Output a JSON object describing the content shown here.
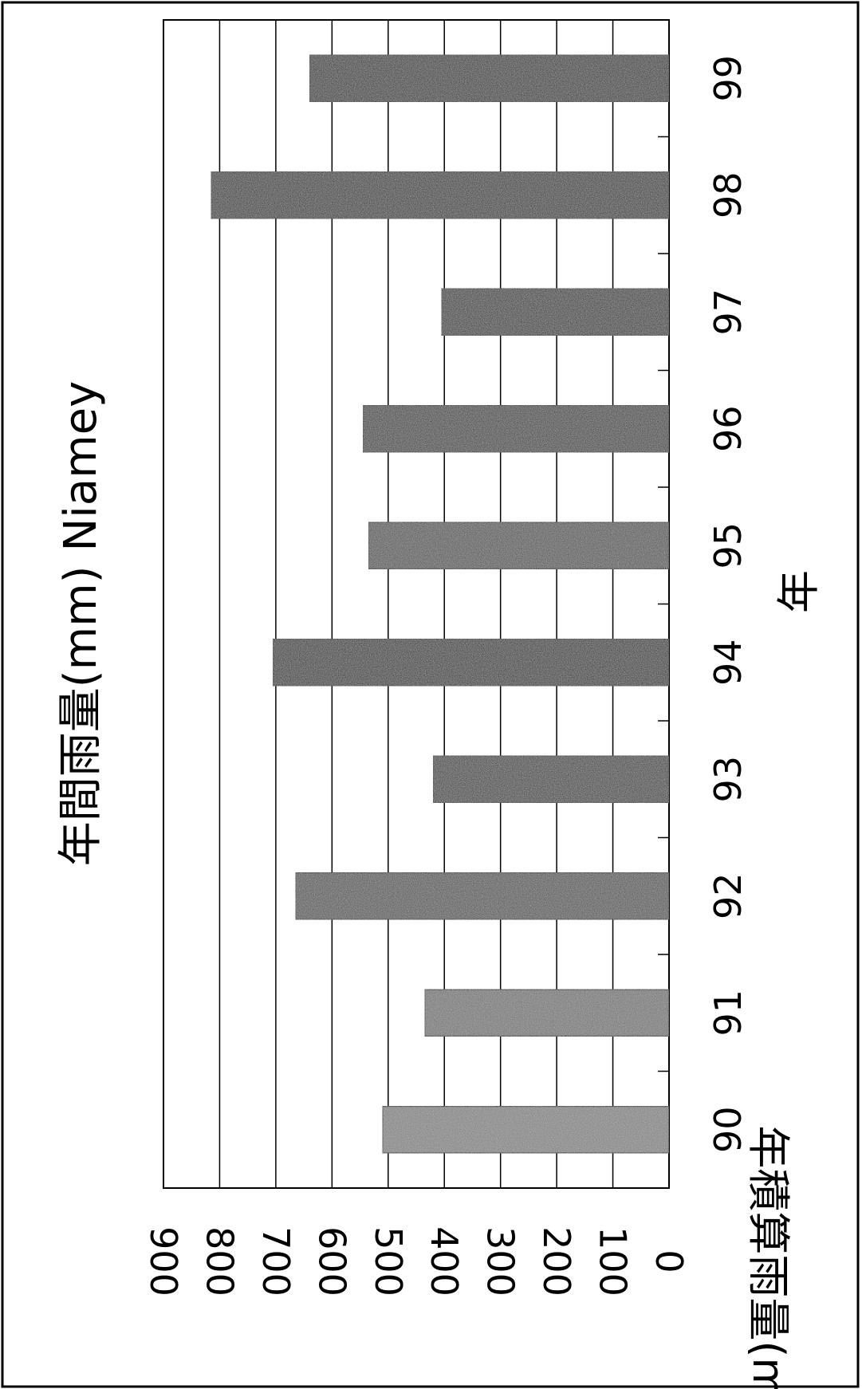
{
  "chart_data": {
    "type": "bar",
    "title": "年間雨量(mm) Niamey",
    "xlabel": "年",
    "ylabel": "年積算雨量(mm)",
    "categories": [
      "90",
      "91",
      "92",
      "93",
      "94",
      "95",
      "96",
      "97",
      "98",
      "99"
    ],
    "values": [
      510,
      435,
      665,
      420,
      705,
      535,
      545,
      405,
      815,
      640
    ],
    "yticks": [
      "0",
      "100",
      "200",
      "300",
      "400",
      "500",
      "600",
      "700",
      "800",
      "900"
    ],
    "ylim": [
      0,
      900
    ],
    "grid": true,
    "legend": "none",
    "colors": {
      "bars": [
        "#7a7a7a",
        "#6b6b6b",
        "#4a4a4a",
        "#333333",
        "#222222",
        "#4a4a4a",
        "#333333",
        "#2a2a2a",
        "#262626",
        "#222222"
      ]
    }
  }
}
